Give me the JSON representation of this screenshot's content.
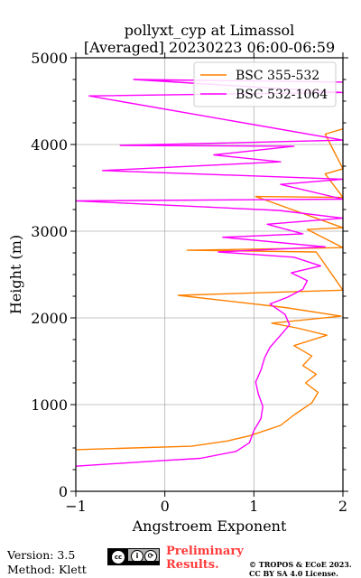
{
  "chart_data": {
    "type": "line",
    "title": "pollyxt_cyp at Limassol",
    "subtitle": "[Averaged] 20230223 06:00-06:59",
    "xlabel": "Angstroem Exponent",
    "ylabel": "Height (m)",
    "xlim": [
      -1,
      2
    ],
    "ylim": [
      0,
      5000
    ],
    "xticks": [
      -1,
      0,
      1,
      2
    ],
    "yticks": [
      0,
      1000,
      2000,
      3000,
      4000,
      5000
    ],
    "grid": true,
    "legend": "top-right",
    "series": [
      {
        "name": "BSC 355-532",
        "color": "#ff8000",
        "points": [
          [
            -1.0,
            480
          ],
          [
            0.3,
            520
          ],
          [
            0.7,
            580
          ],
          [
            0.95,
            640
          ],
          [
            1.3,
            760
          ],
          [
            1.45,
            880
          ],
          [
            1.65,
            1020
          ],
          [
            1.72,
            1140
          ],
          [
            1.58,
            1250
          ],
          [
            1.7,
            1350
          ],
          [
            1.55,
            1450
          ],
          [
            1.65,
            1560
          ],
          [
            1.45,
            1680
          ],
          [
            1.82,
            1800
          ],
          [
            1.5,
            1880
          ],
          [
            1.2,
            1940
          ],
          [
            1.98,
            2020
          ],
          [
            1.35,
            2120
          ],
          [
            0.15,
            2260
          ],
          [
            2.0,
            2320
          ],
          [
            1.7,
            2760
          ],
          [
            0.25,
            2780
          ],
          [
            2.0,
            2810
          ],
          [
            1.6,
            3020
          ],
          [
            2.0,
            3040
          ],
          [
            1.02,
            3400
          ],
          [
            2.0,
            3390
          ],
          [
            1.8,
            3660
          ],
          [
            2.0,
            3720
          ],
          [
            1.8,
            4120
          ],
          [
            2.0,
            4180
          ]
        ]
      },
      {
        "name": "BSC 532-1064",
        "color": "#ff00ff",
        "points": [
          [
            -1.0,
            290
          ],
          [
            -0.1,
            350
          ],
          [
            0.4,
            380
          ],
          [
            0.8,
            460
          ],
          [
            0.95,
            560
          ],
          [
            1.0,
            700
          ],
          [
            1.08,
            840
          ],
          [
            1.1,
            980
          ],
          [
            1.05,
            1120
          ],
          [
            1.02,
            1260
          ],
          [
            1.08,
            1400
          ],
          [
            1.12,
            1540
          ],
          [
            1.18,
            1660
          ],
          [
            1.3,
            1800
          ],
          [
            1.4,
            1920
          ],
          [
            1.35,
            2040
          ],
          [
            1.18,
            2160
          ],
          [
            1.38,
            2240
          ],
          [
            1.55,
            2330
          ],
          [
            1.6,
            2430
          ],
          [
            1.42,
            2520
          ],
          [
            1.75,
            2600
          ],
          [
            1.45,
            2700
          ],
          [
            0.6,
            2760
          ],
          [
            1.8,
            2820
          ],
          [
            0.65,
            2930
          ],
          [
            1.55,
            2970
          ],
          [
            1.15,
            3080
          ],
          [
            2.0,
            3150
          ],
          [
            1.28,
            3240
          ],
          [
            -1.0,
            3350
          ],
          [
            2.0,
            3370
          ],
          [
            1.3,
            3540
          ],
          [
            2.0,
            3600
          ],
          [
            -0.7,
            3700
          ],
          [
            1.3,
            3800
          ],
          [
            0.55,
            3880
          ],
          [
            1.45,
            3980
          ],
          [
            -0.5,
            3990
          ],
          [
            2.0,
            4050
          ],
          [
            -0.85,
            4560
          ],
          [
            2.0,
            4600
          ],
          [
            -0.35,
            4750
          ],
          [
            2.0,
            4720
          ]
        ]
      }
    ]
  },
  "footer": {
    "version": "Version: 3.5",
    "method": "Method: Klett",
    "license_badge_text": "BY SA",
    "preliminary_line1": "Preliminary",
    "preliminary_line2": "Results.",
    "copyright_line1": "© TROPOS & ECoE 2023.",
    "copyright_line2": "CC BY SA 4.0 License."
  }
}
